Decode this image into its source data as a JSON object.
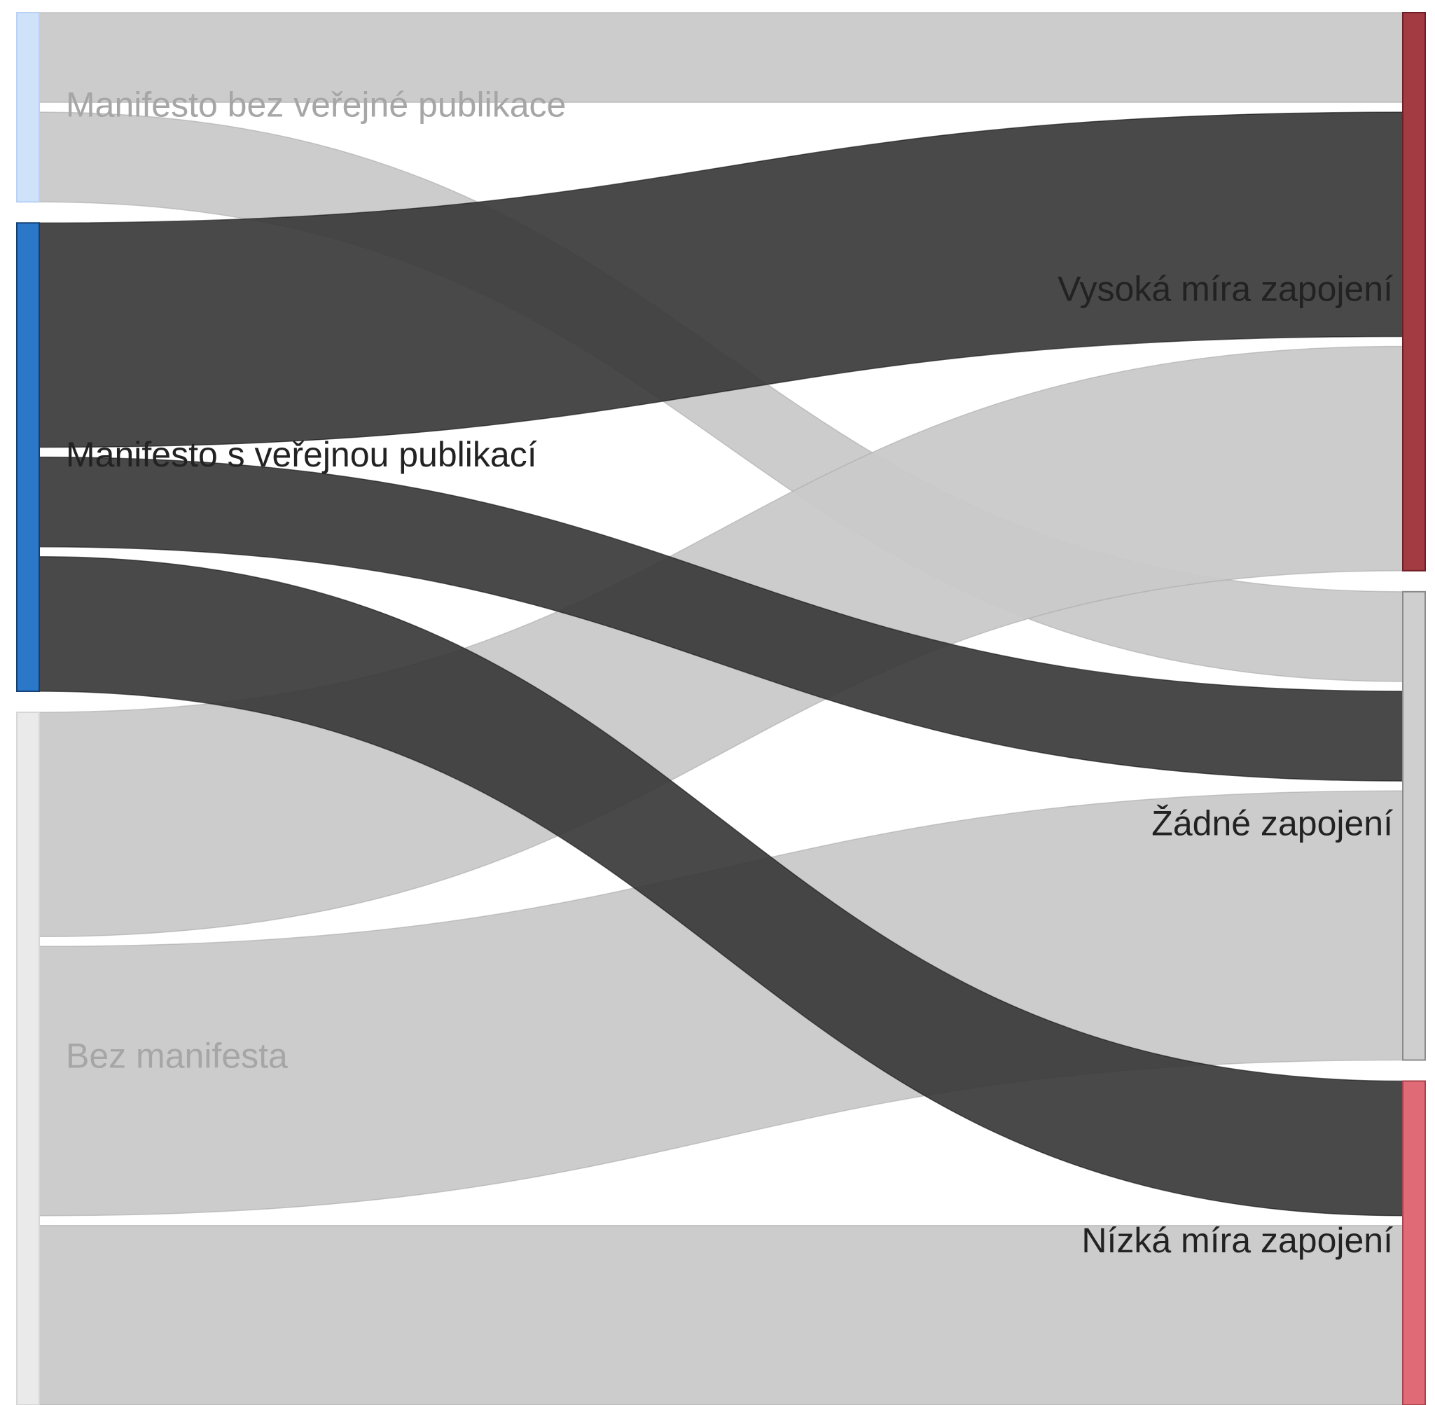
{
  "chart_data": {
    "type": "sankey",
    "nodes": [
      {
        "id": "src_nopub",
        "label": "Manifesto bez veřejné publikace",
        "side": "left",
        "color": "#cfe2fa",
        "stroke": "#b7d2f2",
        "label_color": "#a6a6a6",
        "link_color": "#c9c9c9",
        "link_stroke": "#a9a9a9",
        "link_opacity": 0.95
      },
      {
        "id": "src_pub",
        "label": "Manifesto s veřejnou publikací",
        "side": "left",
        "color": "#2b78c9",
        "stroke": "#123f73",
        "label_color": "#222222",
        "link_color": "#3a3a3a",
        "link_stroke": "#111111",
        "link_opacity": 0.92
      },
      {
        "id": "src_none",
        "label": "Bez manifesta",
        "side": "left",
        "color": "#eaeaea",
        "stroke": "#d6d6d6",
        "label_color": "#a6a6a6",
        "link_color": "#c9c9c9",
        "link_stroke": "#a9a9a9",
        "link_opacity": 0.95
      },
      {
        "id": "dst_high",
        "label": "Vysoká míra zapojení",
        "side": "right",
        "color": "#a33b42",
        "stroke": "#6e1f25",
        "label_color": "#222222"
      },
      {
        "id": "dst_none",
        "label": "Žádné zapojení",
        "side": "right",
        "color": "#cfcfcf",
        "stroke": "#8a8a8a",
        "label_color": "#222222"
      },
      {
        "id": "dst_low",
        "label": "Nízká míra zapojení",
        "side": "right",
        "color": "#e06b76",
        "stroke": "#a8434d",
        "label_color": "#222222"
      }
    ],
    "links": [
      {
        "source": "src_nopub",
        "target": "dst_high",
        "value": 6
      },
      {
        "source": "src_nopub",
        "target": "dst_none",
        "value": 6
      },
      {
        "source": "src_pub",
        "target": "dst_high",
        "value": 15
      },
      {
        "source": "src_pub",
        "target": "dst_none",
        "value": 6
      },
      {
        "source": "src_pub",
        "target": "dst_low",
        "value": 9
      },
      {
        "source": "src_none",
        "target": "dst_high",
        "value": 15
      },
      {
        "source": "src_none",
        "target": "dst_none",
        "value": 18
      },
      {
        "source": "src_none",
        "target": "dst_low",
        "value": 12
      }
    ]
  }
}
